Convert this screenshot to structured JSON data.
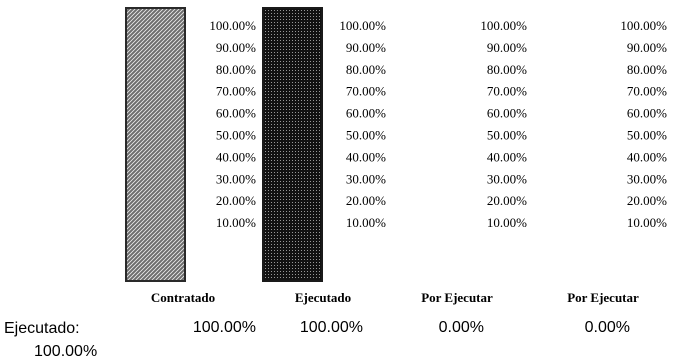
{
  "chart_data": {
    "type": "bar",
    "categories": [
      "Contratado",
      "Ejecutado",
      "Por Ejecutar",
      "Por Ejecutar"
    ],
    "values": [
      100,
      100,
      0,
      0
    ],
    "value_labels": [
      "100.00%",
      "100.00%",
      "0.00%",
      "0.00%"
    ],
    "ylim": [
      0,
      100
    ],
    "y_ticks": [
      100,
      90,
      80,
      70,
      60,
      50,
      40,
      30,
      20,
      10
    ],
    "y_tick_labels": [
      "100.00%",
      "90.00%",
      "80.00%",
      "70.00%",
      "60.00%",
      "50.00%",
      "40.00%",
      "30.00%",
      "20.00%",
      "10.00%"
    ],
    "grid": false,
    "colors": {
      "contratado": "#5a5a5a",
      "ejecutado": "#1a1a1a"
    },
    "summary": {
      "label": "Ejecutado:",
      "value": "100.00%"
    }
  }
}
